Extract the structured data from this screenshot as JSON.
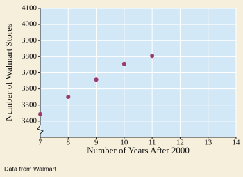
{
  "chart_data": {
    "type": "scatter",
    "xlabel": "Number of Years After 2000",
    "ylabel": "Number of Walmart Stores",
    "note": "Data from Walmart",
    "x": [
      7,
      8,
      9,
      10,
      11
    ],
    "values": [
      3443,
      3551,
      3658,
      3755,
      3805
    ],
    "color": "#9b3a6e",
    "xlim": [
      7,
      14
    ],
    "xticks": [
      7,
      8,
      9,
      10,
      11,
      12,
      13,
      14
    ],
    "ylim": [
      3300,
      4100
    ],
    "yticks": [
      3400,
      3500,
      3600,
      3700,
      3800,
      3900,
      4000,
      4100
    ],
    "grid": true
  }
}
